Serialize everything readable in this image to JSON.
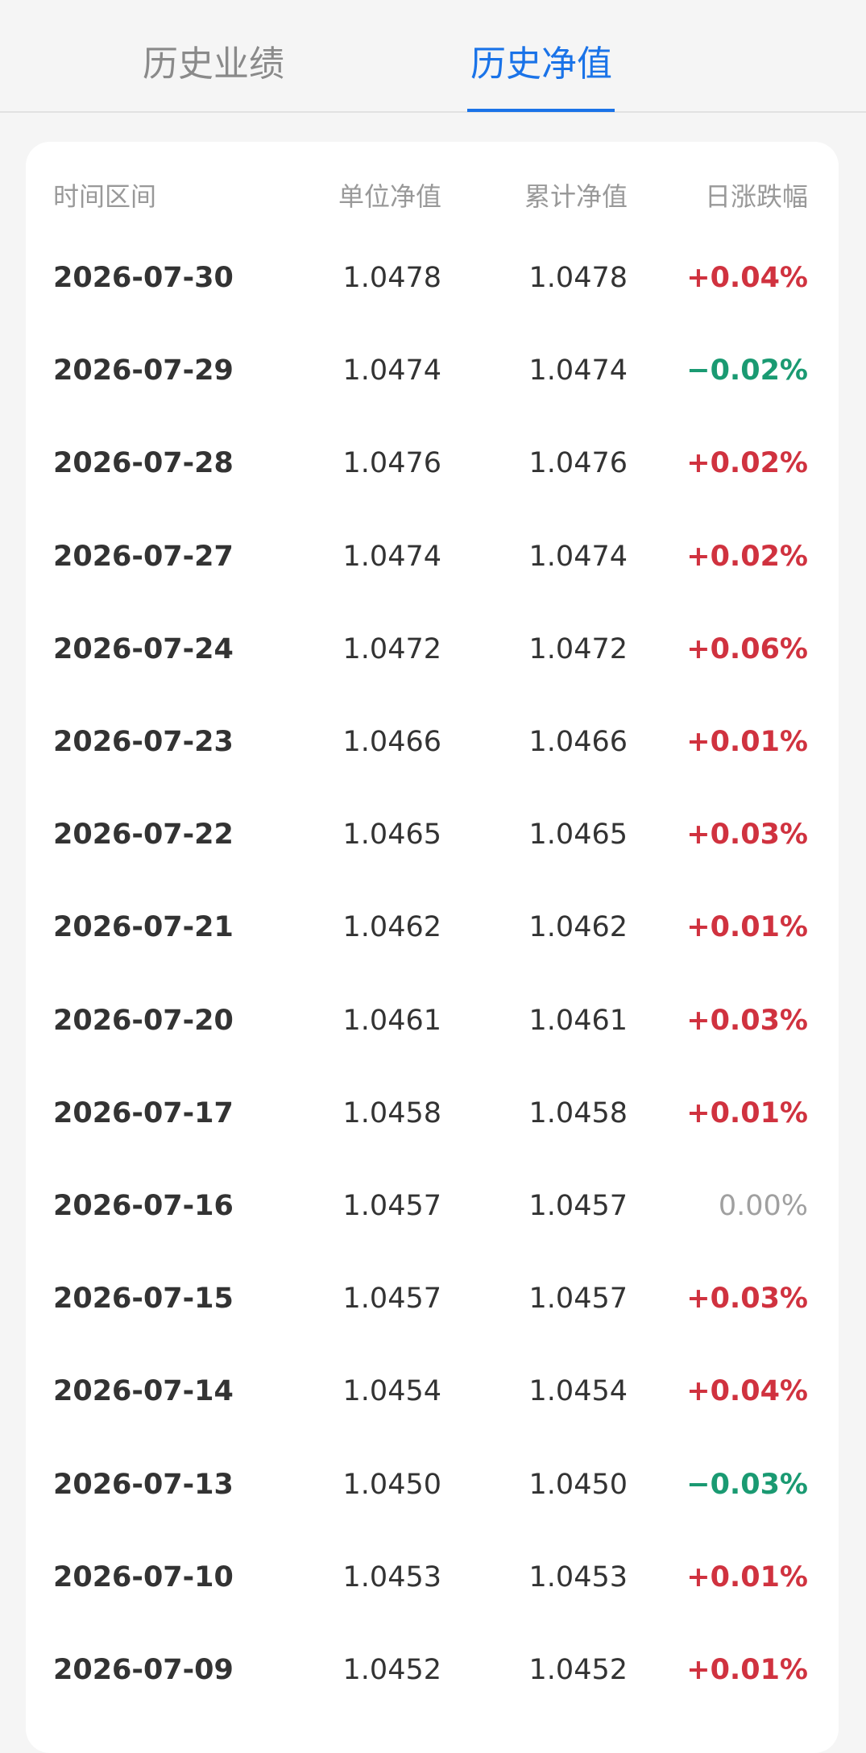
{
  "tabs": [
    "历史业绩",
    "历史净值"
  ],
  "table": {
    "header": [
      "时间区间",
      "单位净值",
      "累计净值",
      "日涨跌幅"
    ],
    "rows": [
      [
        "2026-07-30",
        "1.0478",
        "1.0478",
        "+0.04%"
      ],
      [
        "2026-07-29",
        "1.0474",
        "1.0474",
        "−0.02%"
      ],
      [
        "2026-07-28",
        "1.0476",
        "1.0476",
        "+0.02%"
      ],
      [
        "2026-07-27",
        "1.0474",
        "1.0474",
        "+0.02%"
      ],
      [
        "2026-07-24",
        "1.0472",
        "1.0472",
        "+0.06%"
      ],
      [
        "2026-07-23",
        "1.0466",
        "1.0466",
        "+0.01%"
      ],
      [
        "2026-07-22",
        "1.0465",
        "1.0465",
        "+0.03%"
      ],
      [
        "2026-07-21",
        "1.0462",
        "1.0462",
        "+0.01%"
      ],
      [
        "2026-07-20",
        "1.0461",
        "1.0461",
        "+0.03%"
      ],
      [
        "2026-07-17",
        "1.0458",
        "1.0458",
        "+0.01%"
      ],
      [
        "2026-07-16",
        "1.0457",
        "1.0457",
        "0.00%"
      ],
      [
        "2026-07-15",
        "1.0457",
        "1.0457",
        "+0.03%"
      ],
      [
        "2026-07-14",
        "1.0454",
        "1.0454",
        "+0.04%"
      ],
      [
        "2026-07-13",
        "1.0450",
        "1.0450",
        "−0.03%"
      ],
      [
        "2026-07-10",
        "1.0453",
        "1.0453",
        "+0.01%"
      ],
      [
        "2026-07-09",
        "1.0452",
        "1.0452",
        "+0.01%"
      ]
    ]
  }
}
